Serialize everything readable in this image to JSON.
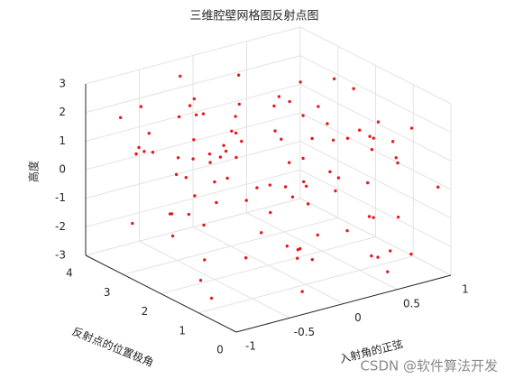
{
  "chart_data": {
    "type": "scatter3d",
    "title": "三维腔壁网格图反射点图",
    "xlabel": "入射角的正弦",
    "ylabel": "反射点的位置极角",
    "zlabel": "高度",
    "xlim": [
      -1,
      1
    ],
    "ylim": [
      0,
      4
    ],
    "zlim": [
      -3,
      3
    ],
    "xticks": [
      -1,
      -0.5,
      0,
      0.5,
      1
    ],
    "yticks": [
      0,
      1,
      2,
      3,
      4
    ],
    "zticks": [
      -3,
      -2,
      -1,
      0,
      1,
      2,
      3
    ],
    "grid": true,
    "series": [
      {
        "color": "#e8161b",
        "x": [
          -0.82,
          0.45,
          -0.13,
          0.91,
          -0.56,
          0.22,
          0.67,
          -0.94,
          0.08,
          -0.37,
          0.53,
          -0.71,
          0.31,
          0.86,
          -0.25,
          -0.62,
          0.14,
          0.74,
          -0.48,
          0.97,
          -0.05,
          0.39,
          -0.88,
          0.61,
          -0.19,
          0.27,
          -0.66,
          0.83,
          -0.41,
          0.02,
          0.58,
          -0.77,
          0.19,
          0.93,
          -0.31,
          -0.59,
          0.47,
          -0.09,
          0.71,
          -0.84,
          0.35,
          -0.52,
          0.12,
          0.79,
          -0.28,
          0.64,
          -0.97,
          0.25,
          -0.15,
          0.88,
          -0.69,
          0.05,
          0.42,
          -0.44,
          0.76,
          -0.91,
          0.17,
          0.55,
          -0.35,
          0.99,
          -0.74,
          0.29,
          -0.02,
          0.68,
          -0.57,
          0.11,
          0.84,
          -0.22,
          0.49,
          -0.81,
          0.36,
          -0.63,
          0.95,
          -0.11,
          0.21,
          -0.46,
          0.73,
          -0.87,
          0.04,
          0.57,
          -0.33,
          0.81,
          -0.68,
          0.16,
          0.44,
          -0.95,
          0.62,
          -0.17,
          0.33,
          -0.53,
          0.89,
          -0.06,
          0.51,
          -0.79,
          0.26,
          -0.39,
          0.69,
          -0.64,
          0.09,
          0.77
        ],
        "y": [
          3.1,
          0.6,
          2.4,
          1.8,
          3.7,
          0.9,
          2.9,
          1.3,
          3.5,
          0.3,
          2.2,
          3.9,
          1.1,
          2.7,
          0.5,
          3.3,
          1.9,
          0.8,
          2.6,
          3.6,
          1.4,
          0.2,
          3.0,
          2.1,
          3.8,
          1.6,
          0.7,
          2.5,
          3.2,
          1.0,
          2.8,
          0.4,
          3.4,
          1.2,
          2.3,
          3.7,
          0.6,
          1.7,
          3.1,
          2.0,
          0.9,
          2.6,
          3.9,
          1.5,
          0.3,
          2.9,
          1.8,
          3.5,
          0.8,
          2.4,
          3.2,
          1.3,
          0.5,
          2.7,
          3.6,
          1.1,
          2.2,
          0.4,
          3.0,
          1.9,
          2.5,
          3.8,
          1.6,
          0.7,
          2.1,
          3.4,
          1.0,
          2.8,
          0.6,
          3.3,
          1.7,
          2.0,
          0.2,
          3.6,
          2.9,
          1.4,
          3.9,
          0.9,
          2.3,
          1.2,
          3.5,
          0.5,
          2.6,
          1.9,
          3.1,
          0.8,
          1.5,
          3.7,
          0.3,
          2.2,
          1.1,
          2.7,
          3.4,
          0.6,
          1.8,
          3.0,
          2.4,
          1.3,
          3.8,
          0.4
        ],
        "z": [
          1.2,
          -0.8,
          2.5,
          -2.1,
          0.4,
          1.9,
          -1.5,
          2.8,
          -0.3,
          0.9,
          -2.6,
          1.6,
          -0.1,
          2.2,
          -1.2,
          0.7,
          -2.4,
          1.4,
          2.9,
          -0.6,
          0.2,
          -1.9,
          1.1,
          -0.4,
          2.6,
          -2.8,
          0.8,
          -1.1,
          1.8,
          -0.2,
          2.3,
          -0.9,
          0.5,
          -1.7,
          1.3,
          2.0,
          -2.2,
          0.1,
          -0.7,
          1.6,
          -1.4,
          2.7,
          -0.5,
          0.6,
          -2.5,
          1.0,
          -0.1,
          2.4,
          -1.8,
          0.3,
          1.5,
          -2.0,
          2.1,
          -0.6,
          0.9,
          -1.3,
          2.6,
          -2.7,
          0.4,
          1.1,
          -0.8,
          0.2,
          1.7,
          -2.3,
          2.8,
          -1.0,
          0.6,
          -0.4,
          1.9,
          -1.6,
          2.4,
          -2.9,
          0.0,
          1.3,
          -1.1,
          2.2,
          -0.3,
          0.8,
          -2.1,
          1.7,
          -0.5,
          2.0,
          -1.7,
          0.5,
          1.4,
          -2.4,
          2.9,
          -0.9,
          0.7,
          -1.2,
          0.3,
          1.8,
          -2.6,
          2.5,
          -0.2,
          -1.5,
          1.0,
          2.1,
          -0.7,
          -2.3
        ]
      }
    ]
  },
  "watermark": "CSDN @软件算法开发"
}
